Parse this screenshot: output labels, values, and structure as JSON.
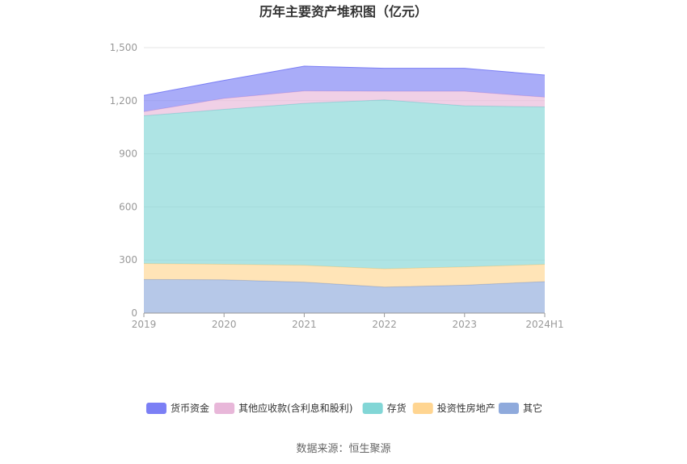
{
  "chart_data": {
    "type": "area",
    "stacked": true,
    "title": "历年主要资产堆积图（亿元）",
    "categories": [
      "2019",
      "2020",
      "2021",
      "2022",
      "2023",
      "2024H1"
    ],
    "ylim": [
      0,
      1500
    ],
    "yticks": [
      "0",
      "300",
      "600",
      "900",
      "1,200",
      "1,500"
    ],
    "ytick_values": [
      0,
      300,
      600,
      900,
      1200,
      1500
    ],
    "grid": true,
    "legend_position": "bottom",
    "series": [
      {
        "name": "其它",
        "color": "#8faadc",
        "values": [
          190,
          188,
          175,
          147,
          158,
          178
        ]
      },
      {
        "name": "投资性房地产",
        "color": "#ffd591",
        "values": [
          90,
          88,
          95,
          103,
          103,
          97
        ]
      },
      {
        "name": "存货",
        "color": "#82d6d6",
        "values": [
          835,
          875,
          915,
          955,
          910,
          890
        ]
      },
      {
        "name": "其他应收款(含利息和股利)",
        "color": "#e8b7d9",
        "values": [
          23,
          62,
          70,
          48,
          82,
          55
        ]
      },
      {
        "name": "货币资金",
        "color": "#7b7ff5",
        "values": [
          92,
          102,
          140,
          130,
          130,
          125
        ]
      }
    ],
    "legend_order": [
      "货币资金",
      "其他应收款(含利息和股利)",
      "存货",
      "投资性房地产",
      "其它"
    ]
  },
  "source": "数据来源：恒生聚源"
}
